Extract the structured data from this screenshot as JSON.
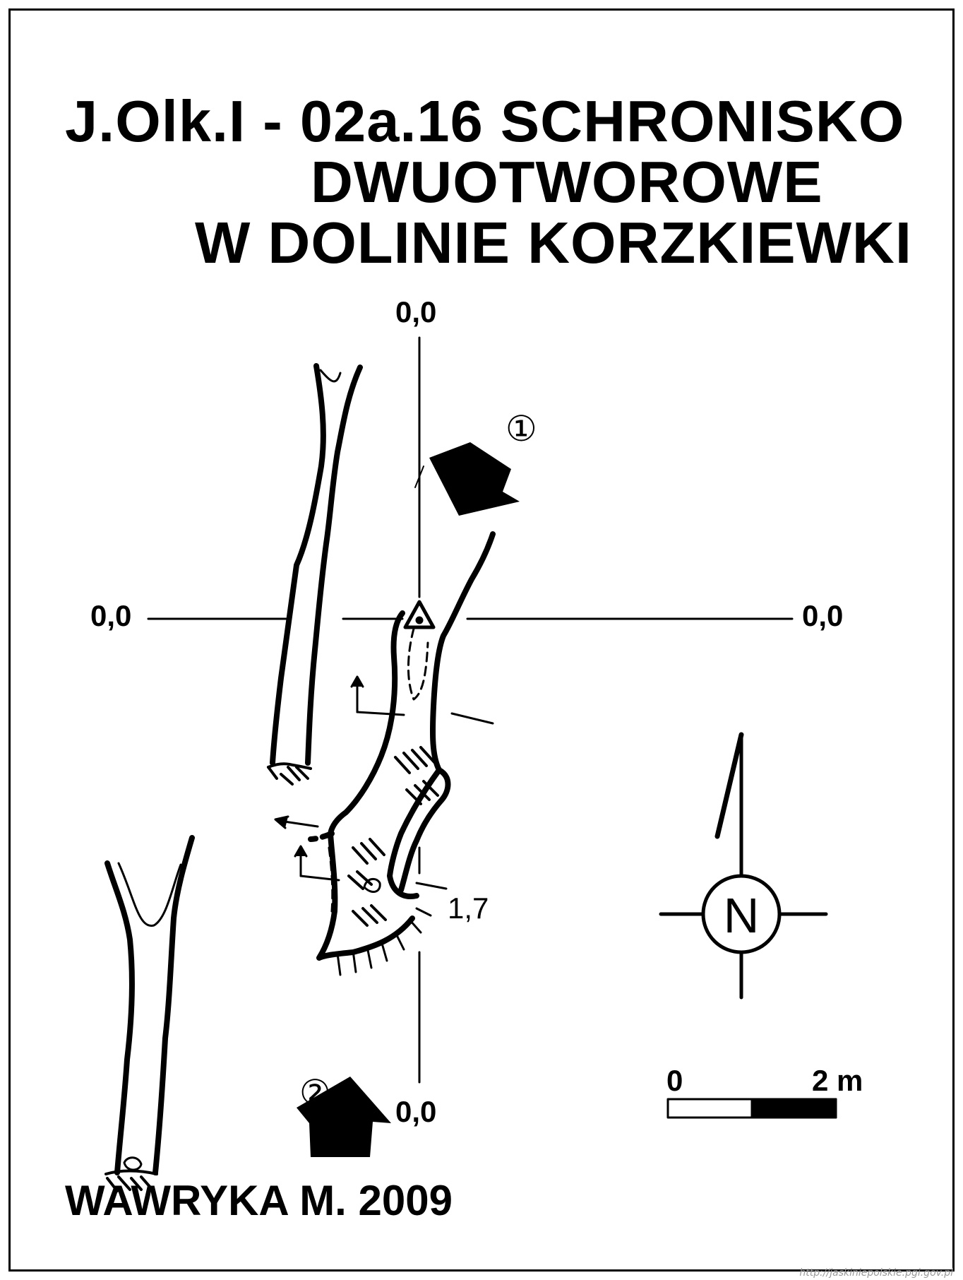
{
  "title": {
    "line1": "J.Olk.I - 02a.16  SCHRONISKO",
    "line2": "DWUOTWOROWE",
    "line3": "W DOLINIE KORZKIEWKI"
  },
  "coords": {
    "top": "0,0",
    "bottom": "0,0",
    "left": "0,0",
    "right": "0,0"
  },
  "depth_marker": "1,7",
  "entrances": {
    "one": "①",
    "two": "②"
  },
  "compass": {
    "letter": "N"
  },
  "scale": {
    "start": "0",
    "end": "2 m"
  },
  "author": "WAWRYKA M. 2009",
  "watermark": "http://jaskiniepolskie.pgi.gov.pl",
  "colors": {
    "ink": "#000000",
    "paper": "#ffffff"
  }
}
